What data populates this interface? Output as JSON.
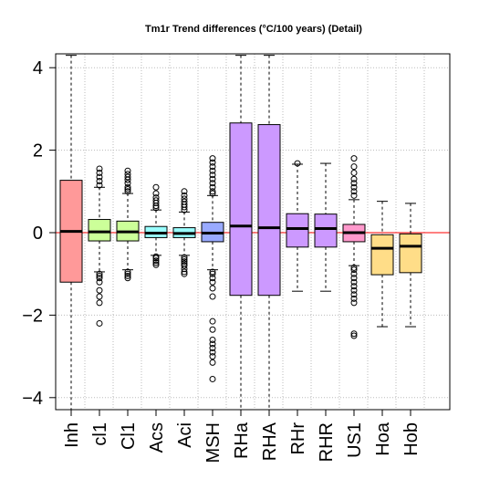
{
  "chart_data": {
    "type": "box",
    "title": "Tm1r Trend differences (°C/100 years) (Detail)",
    "xlabel": "",
    "ylabel": "",
    "ylim": [
      -4.35,
      4.3
    ],
    "yticks": [
      -4,
      -2,
      0,
      2,
      4
    ],
    "ytick_labels": [
      "−4",
      "−2",
      "0",
      "2",
      "4"
    ],
    "grid": true,
    "reference_line": {
      "y": 0,
      "color": "#ff0000"
    },
    "categories": [
      "Inh",
      "cl1",
      "Cl1",
      "Acs",
      "Aci",
      "MSH",
      "RHa",
      "RHA",
      "RHr",
      "RHR",
      "US1",
      "Hoa",
      "Hob"
    ],
    "boxes": [
      {
        "label": "Inh",
        "q1": -1.2,
        "median": 0.03,
        "q3": 1.27,
        "whisker_low": -4.3,
        "whisker_high": 4.3,
        "color": "#ff9999",
        "outliers": []
      },
      {
        "label": "cl1",
        "q1": -0.2,
        "median": 0.02,
        "q3": 0.32,
        "whisker_low": -0.95,
        "whisker_high": 1.1,
        "color": "#ccff99",
        "outliers": [
          1.55,
          1.45,
          1.35,
          1.25,
          1.15,
          -1.0,
          -1.05,
          -1.1,
          -1.2,
          -1.4,
          -1.55,
          -1.7,
          -2.2
        ]
      },
      {
        "label": "Cl1",
        "q1": -0.2,
        "median": 0.02,
        "q3": 0.28,
        "whisker_low": -0.9,
        "whisker_high": 0.95,
        "color": "#ccff99",
        "outliers": [
          1.5,
          1.42,
          1.35,
          1.28,
          1.2,
          1.1,
          1.05,
          1.0,
          -0.95,
          -1.0,
          -1.05,
          -1.1
        ]
      },
      {
        "label": "Acs",
        "q1": -0.12,
        "median": -0.01,
        "q3": 0.15,
        "whisker_low": -0.55,
        "whisker_high": 0.55,
        "color": "#99ffff",
        "outliers": [
          1.1,
          0.95,
          0.85,
          0.78,
          0.72,
          0.65,
          0.6,
          -0.58,
          -0.62,
          -0.68,
          -0.73,
          -0.78
        ]
      },
      {
        "label": "Aci",
        "q1": -0.12,
        "median": -0.02,
        "q3": 0.12,
        "whisker_low": -0.55,
        "whisker_high": 0.5,
        "color": "#99ffff",
        "outliers": [
          1.0,
          0.9,
          0.82,
          0.75,
          0.68,
          0.62,
          0.55,
          -0.6,
          -0.65,
          -0.7,
          -0.75,
          -0.8,
          -0.88,
          -0.95,
          -1.0
        ]
      },
      {
        "label": "MSH",
        "q1": -0.22,
        "median": -0.01,
        "q3": 0.25,
        "whisker_low": -0.9,
        "whisker_high": 0.9,
        "color": "#99aaff",
        "outliers": [
          1.8,
          1.7,
          1.6,
          1.5,
          1.4,
          1.3,
          1.2,
          1.1,
          1.0,
          0.95,
          -0.95,
          -1.0,
          -1.1,
          -1.2,
          -1.35,
          -1.55,
          -2.15,
          -2.35,
          -2.6,
          -2.7,
          -2.8,
          -2.9,
          -3.0,
          -3.15,
          -3.55
        ]
      },
      {
        "label": "RHa",
        "q1": -1.52,
        "median": 0.16,
        "q3": 2.66,
        "whisker_low": -4.3,
        "whisker_high": 4.3,
        "color": "#cc99ff",
        "outliers": []
      },
      {
        "label": "RHA",
        "q1": -1.52,
        "median": 0.12,
        "q3": 2.62,
        "whisker_low": -4.3,
        "whisker_high": 4.3,
        "color": "#cc99ff",
        "outliers": []
      },
      {
        "label": "RHr",
        "q1": -0.35,
        "median": 0.1,
        "q3": 0.46,
        "whisker_low": -1.42,
        "whisker_high": 1.66,
        "color": "#cc99ff",
        "outliers": [
          1.68
        ]
      },
      {
        "label": "RHR",
        "q1": -0.35,
        "median": 0.1,
        "q3": 0.45,
        "whisker_low": -1.42,
        "whisker_high": 1.68,
        "color": "#cc99ff",
        "outliers": []
      },
      {
        "label": "US1",
        "q1": -0.22,
        "median": 0.0,
        "q3": 0.2,
        "whisker_low": -0.8,
        "whisker_high": 0.8,
        "color": "#ff99cc",
        "outliers": [
          1.8,
          1.6,
          1.45,
          1.3,
          1.2,
          1.1,
          1.0,
          0.9,
          -0.85,
          -0.9,
          -1.0,
          -1.1,
          -1.2,
          -1.3,
          -1.4,
          -1.5,
          -1.6,
          -1.7,
          -2.45,
          -2.5
        ]
      },
      {
        "label": "Hoa",
        "q1": -1.02,
        "median": -0.38,
        "q3": -0.05,
        "whisker_low": -2.28,
        "whisker_high": 0.76,
        "color": "#ffdd88",
        "outliers": []
      },
      {
        "label": "Hob",
        "q1": -0.97,
        "median": -0.33,
        "q3": -0.03,
        "whisker_low": -2.28,
        "whisker_high": 0.71,
        "color": "#ffdd88",
        "outliers": []
      }
    ]
  }
}
